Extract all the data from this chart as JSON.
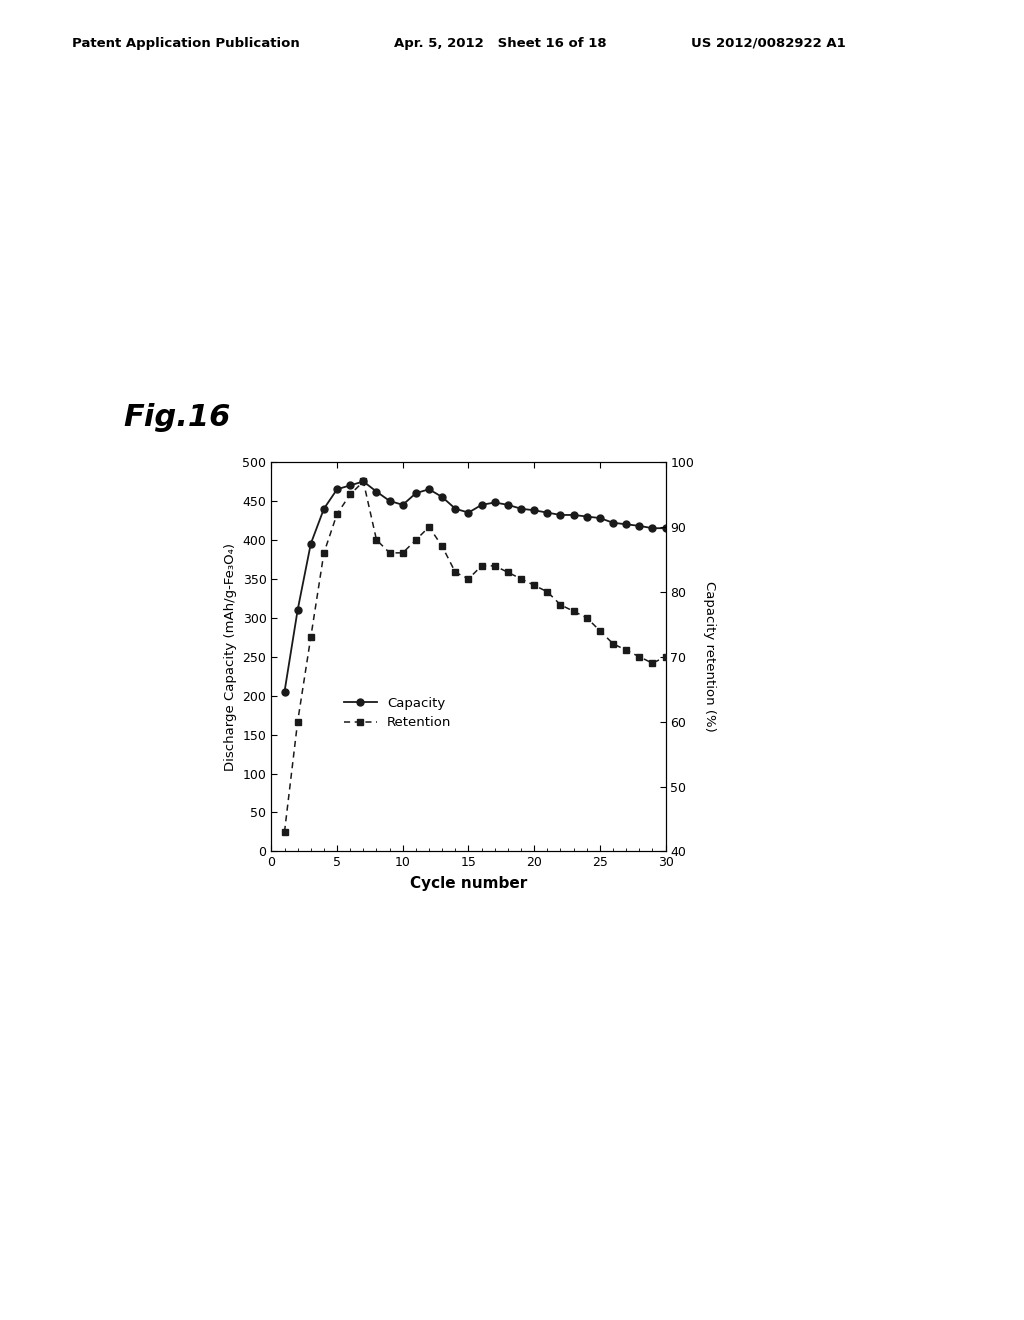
{
  "capacity_x": [
    1,
    2,
    3,
    4,
    5,
    6,
    7,
    8,
    9,
    10,
    11,
    12,
    13,
    14,
    15,
    16,
    17,
    18,
    19,
    20,
    21,
    22,
    23,
    24,
    25,
    26,
    27,
    28,
    29,
    30
  ],
  "capacity_y": [
    205,
    310,
    395,
    440,
    465,
    470,
    475,
    462,
    450,
    445,
    460,
    465,
    455,
    440,
    435,
    445,
    448,
    445,
    440,
    438,
    435,
    432,
    432,
    430,
    428,
    422,
    420,
    418,
    415,
    415
  ],
  "retention_pct": [
    43,
    60,
    73,
    86,
    92,
    95,
    97,
    88,
    86,
    86,
    88,
    90,
    87,
    83,
    82,
    84,
    84,
    83,
    82,
    81,
    80,
    78,
    77,
    76,
    74,
    72,
    71,
    70,
    69,
    70
  ],
  "left_ylabel": "Discharge Capacity (mAh/g-Fe₃O₄)",
  "right_ylabel": "Capacity retention (%)",
  "xlabel": "Cycle number",
  "fig_label": "Fig.16",
  "header_left": "Patent Application Publication",
  "header_mid": "Apr. 5, 2012   Sheet 16 of 18",
  "header_right": "US 2012/0082922 A1",
  "left_ylim": [
    0,
    500
  ],
  "right_ylim": [
    40,
    100
  ],
  "xlim": [
    0,
    30
  ],
  "left_yticks": [
    0,
    50,
    100,
    150,
    200,
    250,
    300,
    350,
    400,
    450,
    500
  ],
  "right_yticks": [
    40,
    50,
    60,
    70,
    80,
    90,
    100
  ],
  "xticks": [
    0,
    5,
    10,
    15,
    20,
    25,
    30
  ],
  "line_color": "#1a1a1a",
  "bg_color": "#ffffff"
}
